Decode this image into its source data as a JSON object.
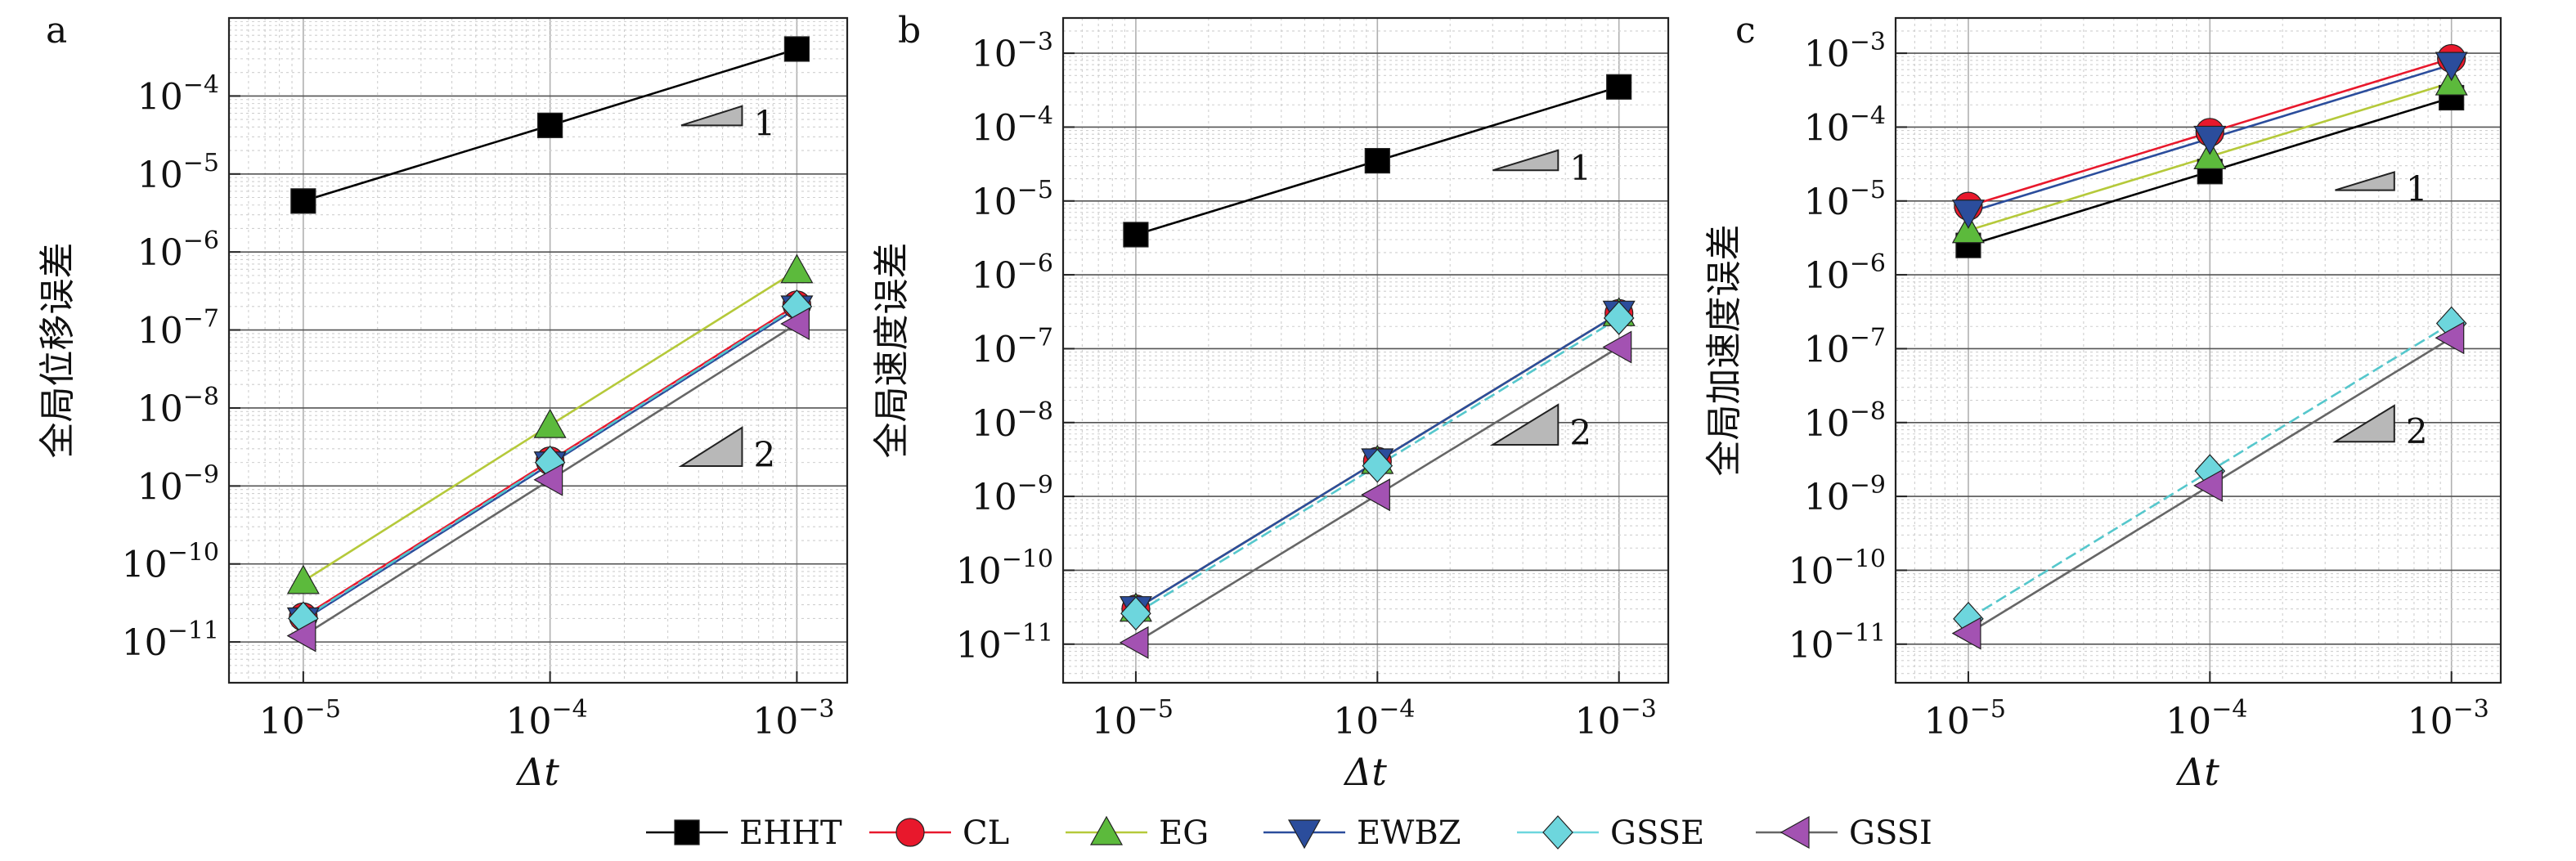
{
  "legend": {
    "placement": "bottom-center",
    "entries": [
      {
        "label": "EHHT",
        "color": "#000000",
        "marker": "square"
      },
      {
        "label": "CL",
        "color": "#e8182c",
        "marker": "circle"
      },
      {
        "label": "EG",
        "color": "#5cba3c",
        "marker": "triangle-up"
      },
      {
        "label": "EWBZ",
        "color": "#2b4d9c",
        "marker": "triangle-down"
      },
      {
        "label": "GSSE",
        "color": "#6dd6dd",
        "marker": "diamond"
      },
      {
        "label": "GSSI",
        "color": "#a352b2",
        "marker": "triangle-left"
      }
    ]
  },
  "chart_data": [
    {
      "type": "line",
      "panel_label": "a",
      "title": "",
      "xlabel": "Δt",
      "ylabel": "全局位移误差",
      "xscale": "log",
      "yscale": "log",
      "xlim": [
        5e-06,
        0.0016
      ],
      "ylim": [
        3e-12,
        0.001
      ],
      "xticks": [
        {
          "value": 1e-05,
          "base": "10",
          "exp": "−5"
        },
        {
          "value": 0.0001,
          "base": "10",
          "exp": "−4"
        },
        {
          "value": 0.001,
          "base": "10",
          "exp": "−3"
        }
      ],
      "yticks": [
        {
          "value": 1e-11,
          "base": "10",
          "exp": "−11"
        },
        {
          "value": 1e-10,
          "base": "10",
          "exp": "−10"
        },
        {
          "value": 1e-09,
          "base": "10",
          "exp": "−9"
        },
        {
          "value": 1e-08,
          "base": "10",
          "exp": "−8"
        },
        {
          "value": 1e-07,
          "base": "10",
          "exp": "−7"
        },
        {
          "value": 1e-06,
          "base": "10",
          "exp": "−6"
        },
        {
          "value": 1e-05,
          "base": "10",
          "exp": "−5"
        },
        {
          "value": 0.0001,
          "base": "10",
          "exp": "−4"
        }
      ],
      "grid": true,
      "x": [
        1e-05,
        0.0001,
        0.001
      ],
      "series": [
        {
          "name": "EHHT",
          "values": [
            4.5e-06,
            4.2e-05,
            0.0004
          ]
        },
        {
          "name": "CL",
          "values": [
            2.1e-11,
            2.1e-09,
            2.1e-07
          ]
        },
        {
          "name": "EG",
          "values": [
            6e-11,
            6e-09,
            5.8e-07
          ]
        },
        {
          "name": "EWBZ",
          "values": [
            1.9e-11,
            1.9e-09,
            1.9e-07
          ]
        },
        {
          "name": "GSSE",
          "values": [
            2e-11,
            2e-09,
            2e-07
          ]
        },
        {
          "name": "GSSI",
          "values": [
            1.2e-11,
            1.2e-09,
            1.2e-07
          ]
        }
      ],
      "slope_markers": [
        {
          "label": "1",
          "x": [
            0.00034,
            0.0006
          ],
          "y_base": 4.2e-05
        },
        {
          "label": "2",
          "x": [
            0.00034,
            0.0006
          ],
          "y_base": 1.8e-09
        }
      ]
    },
    {
      "type": "line",
      "panel_label": "b",
      "title": "",
      "xlabel": "Δt",
      "ylabel": "全局速度误差",
      "xscale": "log",
      "yscale": "log",
      "xlim": [
        5e-06,
        0.0016
      ],
      "ylim": [
        3e-12,
        0.003
      ],
      "xticks": [
        {
          "value": 1e-05,
          "base": "10",
          "exp": "−5"
        },
        {
          "value": 0.0001,
          "base": "10",
          "exp": "−4"
        },
        {
          "value": 0.001,
          "base": "10",
          "exp": "−3"
        }
      ],
      "yticks": [
        {
          "value": 1e-11,
          "base": "10",
          "exp": "−11"
        },
        {
          "value": 1e-10,
          "base": "10",
          "exp": "−10"
        },
        {
          "value": 1e-09,
          "base": "10",
          "exp": "−9"
        },
        {
          "value": 1e-08,
          "base": "10",
          "exp": "−8"
        },
        {
          "value": 1e-07,
          "base": "10",
          "exp": "−7"
        },
        {
          "value": 1e-06,
          "base": "10",
          "exp": "−6"
        },
        {
          "value": 1e-05,
          "base": "10",
          "exp": "−5"
        },
        {
          "value": 0.0001,
          "base": "10",
          "exp": "−4"
        },
        {
          "value": 0.001,
          "base": "10",
          "exp": "−3"
        }
      ],
      "grid": true,
      "x": [
        1e-05,
        0.0001,
        0.001
      ],
      "series": [
        {
          "name": "EHHT",
          "values": [
            3.5e-06,
            3.5e-05,
            0.00035
          ]
        },
        {
          "name": "CL",
          "values": [
            3e-11,
            3e-09,
            3e-07
          ]
        },
        {
          "name": "EG",
          "values": [
            3e-11,
            3e-09,
            3e-07
          ]
        },
        {
          "name": "EWBZ",
          "values": [
            3e-11,
            3e-09,
            3e-07
          ]
        },
        {
          "name": "GSSE",
          "values": [
            2.6e-11,
            2.6e-09,
            2.6e-07
          ]
        },
        {
          "name": "GSSI",
          "values": [
            1.05e-11,
            1.05e-09,
            1.05e-07
          ]
        }
      ],
      "slope_markers": [
        {
          "label": "1",
          "x": [
            0.0003,
            0.00056
          ],
          "y_base": 2.6e-05
        },
        {
          "label": "2",
          "x": [
            0.0003,
            0.00056
          ],
          "y_base": 5e-09
        }
      ]
    },
    {
      "type": "line",
      "panel_label": "c",
      "title": "",
      "xlabel": "Δt",
      "ylabel": "全局加速度误差",
      "xscale": "log",
      "yscale": "log",
      "xlim": [
        5e-06,
        0.0016
      ],
      "ylim": [
        3e-12,
        0.003
      ],
      "xticks": [
        {
          "value": 1e-05,
          "base": "10",
          "exp": "−5"
        },
        {
          "value": 0.0001,
          "base": "10",
          "exp": "−4"
        },
        {
          "value": 0.001,
          "base": "10",
          "exp": "−3"
        }
      ],
      "yticks": [
        {
          "value": 1e-11,
          "base": "10",
          "exp": "−11"
        },
        {
          "value": 1e-10,
          "base": "10",
          "exp": "−10"
        },
        {
          "value": 1e-09,
          "base": "10",
          "exp": "−9"
        },
        {
          "value": 1e-08,
          "base": "10",
          "exp": "−8"
        },
        {
          "value": 1e-07,
          "base": "10",
          "exp": "−7"
        },
        {
          "value": 1e-06,
          "base": "10",
          "exp": "−6"
        },
        {
          "value": 1e-05,
          "base": "10",
          "exp": "−5"
        },
        {
          "value": 0.0001,
          "base": "10",
          "exp": "−4"
        },
        {
          "value": 0.001,
          "base": "10",
          "exp": "−3"
        }
      ],
      "grid": true,
      "x": [
        1e-05,
        0.0001,
        0.001
      ],
      "series": [
        {
          "name": "EHHT",
          "values": [
            2.5e-06,
            2.5e-05,
            0.00025
          ]
        },
        {
          "name": "CL",
          "values": [
            8.5e-06,
            8.5e-05,
            0.00085
          ]
        },
        {
          "name": "EG",
          "values": [
            4e-06,
            4e-05,
            0.0004
          ]
        },
        {
          "name": "EWBZ",
          "values": [
            7e-06,
            7e-05,
            0.0007
          ]
        },
        {
          "name": "GSSE",
          "values": [
            2.2e-11,
            2.2e-09,
            2.2e-07
          ]
        },
        {
          "name": "GSSI",
          "values": [
            1.4e-11,
            1.4e-09,
            1.4e-07
          ]
        }
      ],
      "slope_markers": [
        {
          "label": "1",
          "x": [
            0.00033,
            0.00058
          ],
          "y_base": 1.4e-05
        },
        {
          "label": "2",
          "x": [
            0.00033,
            0.00058
          ],
          "y_base": 5.5e-09
        }
      ]
    }
  ]
}
